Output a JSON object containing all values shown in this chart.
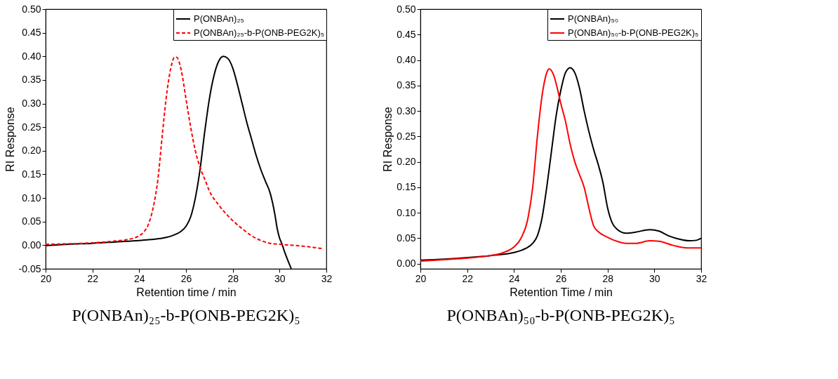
{
  "chart_data": [
    {
      "type": "line",
      "title": "P(ONBAn)₂₅-b-P(ONB-PEG2K)₅",
      "xlabel": "Retention time / min",
      "ylabel": "RI Response",
      "xlim": [
        20,
        32
      ],
      "xticks": [
        20,
        22,
        24,
        26,
        28,
        30,
        32
      ],
      "ylim": [
        -0.05,
        0.5
      ],
      "yticks": [
        {
          "value": -0.05,
          "label": "-0.05"
        },
        {
          "value": 0,
          "label": "0.00"
        },
        {
          "value": 0.05,
          "label": "0.05"
        },
        {
          "value": 0.1,
          "label": "0.10"
        },
        {
          "value": 0.15,
          "label": "0.15"
        },
        {
          "value": 0.2,
          "label": "0.20"
        },
        {
          "value": 0.25,
          "label": "0.25"
        },
        {
          "value": 0.3,
          "label": "0.30"
        },
        {
          "value": 0.35,
          "label": "0.35"
        },
        {
          "value": 0.4,
          "label": "0.40"
        },
        {
          "value": 0.45,
          "label": "0.45"
        },
        {
          "value": 0.5,
          "label": "0.50"
        }
      ],
      "grid": false,
      "legend": "top right",
      "marker": "none",
      "series": [
        {
          "name": "P(ONBAn)₂₅",
          "color": "#000000",
          "line_style": "solid",
          "x": [
            20,
            21,
            22,
            23,
            24,
            24.5,
            25,
            25.5,
            25.8,
            26,
            26.2,
            26.4,
            26.6,
            26.8,
            27,
            27.2,
            27.4,
            27.6,
            27.8,
            28,
            28.2,
            28.4,
            28.6,
            28.8,
            29,
            29.2,
            29.4,
            29.6,
            29.7,
            29.8,
            29.9,
            30,
            30.1,
            30.2,
            30.4,
            30.5
          ],
          "values": [
            -0.001,
            0.002,
            0.004,
            0.007,
            0.01,
            0.012,
            0.015,
            0.022,
            0.03,
            0.04,
            0.06,
            0.1,
            0.16,
            0.24,
            0.31,
            0.36,
            0.39,
            0.4,
            0.395,
            0.375,
            0.34,
            0.3,
            0.26,
            0.225,
            0.19,
            0.16,
            0.135,
            0.11,
            0.09,
            0.065,
            0.035,
            0.015,
            0.003,
            -0.012,
            -0.038,
            -0.05
          ]
        },
        {
          "name": "P(ONBAn)₂₅-b-P(ONB-PEG2K)₅",
          "color": "#ff0000",
          "line_style": "dashed",
          "x": [
            20,
            21,
            22,
            23,
            23.5,
            24,
            24.2,
            24.4,
            24.6,
            24.8,
            25,
            25.2,
            25.4,
            25.5,
            25.6,
            25.8,
            26,
            26.2,
            26.4,
            26.6,
            26.8,
            27,
            27.4,
            27.8,
            28,
            28.4,
            28.8,
            29.2,
            29.6,
            30,
            30.5,
            31,
            31.5,
            31.8
          ],
          "values": [
            0.002,
            0.003,
            0.005,
            0.009,
            0.012,
            0.02,
            0.028,
            0.045,
            0.08,
            0.14,
            0.24,
            0.33,
            0.385,
            0.398,
            0.398,
            0.37,
            0.31,
            0.25,
            0.2,
            0.165,
            0.14,
            0.115,
            0.085,
            0.062,
            0.052,
            0.035,
            0.02,
            0.01,
            0.004,
            0.002,
            0.0,
            -0.002,
            -0.005,
            -0.007
          ]
        }
      ]
    },
    {
      "type": "line",
      "title": "P(ONBAn)₅₀-b-P(ONB-PEG2K)₅",
      "xlabel": "Retention Time / min",
      "ylabel": "RI Response",
      "xlim": [
        20,
        32
      ],
      "xticks": [
        20,
        22,
        24,
        26,
        28,
        30,
        32
      ],
      "ylim": [
        -0.01,
        0.5
      ],
      "yticks": [
        {
          "value": 0,
          "label": "0.00"
        },
        {
          "value": 0.05,
          "label": "0.05"
        },
        {
          "value": 0.1,
          "label": "0.10"
        },
        {
          "value": 0.15,
          "label": "0.15"
        },
        {
          "value": 0.2,
          "label": "0.20"
        },
        {
          "value": 0.25,
          "label": "0.25"
        },
        {
          "value": 0.3,
          "label": "0.30"
        },
        {
          "value": 0.35,
          "label": "0.35"
        },
        {
          "value": 0.4,
          "label": "0.40"
        },
        {
          "value": 0.45,
          "label": "0.45"
        },
        {
          "value": 0.5,
          "label": "0.50"
        }
      ],
      "grid": false,
      "legend": "top right",
      "marker": "none",
      "series": [
        {
          "name": "P(ONBAn)₅₀",
          "color": "#000000",
          "line_style": "solid",
          "x": [
            20,
            21,
            22,
            23,
            24,
            24.5,
            24.8,
            25,
            25.2,
            25.4,
            25.6,
            25.8,
            26,
            26.2,
            26.4,
            26.6,
            26.8,
            27,
            27.2,
            27.4,
            27.6,
            27.8,
            28,
            28.2,
            28.4,
            28.8,
            29.2,
            29.8,
            30.2,
            30.6,
            31,
            31.5,
            31.8,
            32
          ],
          "values": [
            0.007,
            0.009,
            0.012,
            0.016,
            0.022,
            0.03,
            0.04,
            0.055,
            0.09,
            0.15,
            0.22,
            0.29,
            0.34,
            0.375,
            0.385,
            0.375,
            0.345,
            0.3,
            0.26,
            0.225,
            0.195,
            0.16,
            0.11,
            0.08,
            0.068,
            0.06,
            0.062,
            0.067,
            0.064,
            0.055,
            0.049,
            0.045,
            0.046,
            0.05
          ]
        },
        {
          "name": "P(ONBAn)₅₀-b-P(ONB-PEG2K)₅",
          "color": "#ff0000",
          "line_style": "solid",
          "x": [
            20,
            21,
            22,
            23,
            23.5,
            24,
            24.3,
            24.6,
            24.8,
            25,
            25.2,
            25.4,
            25.5,
            25.7,
            25.9,
            26,
            26.2,
            26.4,
            26.6,
            26.8,
            27,
            27.2,
            27.4,
            27.6,
            28,
            28.4,
            28.8,
            29.2,
            29.8,
            30.2,
            30.8,
            31.4,
            32
          ],
          "values": [
            0.005,
            0.008,
            0.011,
            0.016,
            0.021,
            0.033,
            0.05,
            0.09,
            0.15,
            0.25,
            0.33,
            0.375,
            0.383,
            0.37,
            0.335,
            0.315,
            0.28,
            0.235,
            0.2,
            0.175,
            0.15,
            0.11,
            0.075,
            0.063,
            0.052,
            0.044,
            0.04,
            0.04,
            0.045,
            0.044,
            0.036,
            0.031,
            0.031
          ]
        }
      ]
    }
  ]
}
